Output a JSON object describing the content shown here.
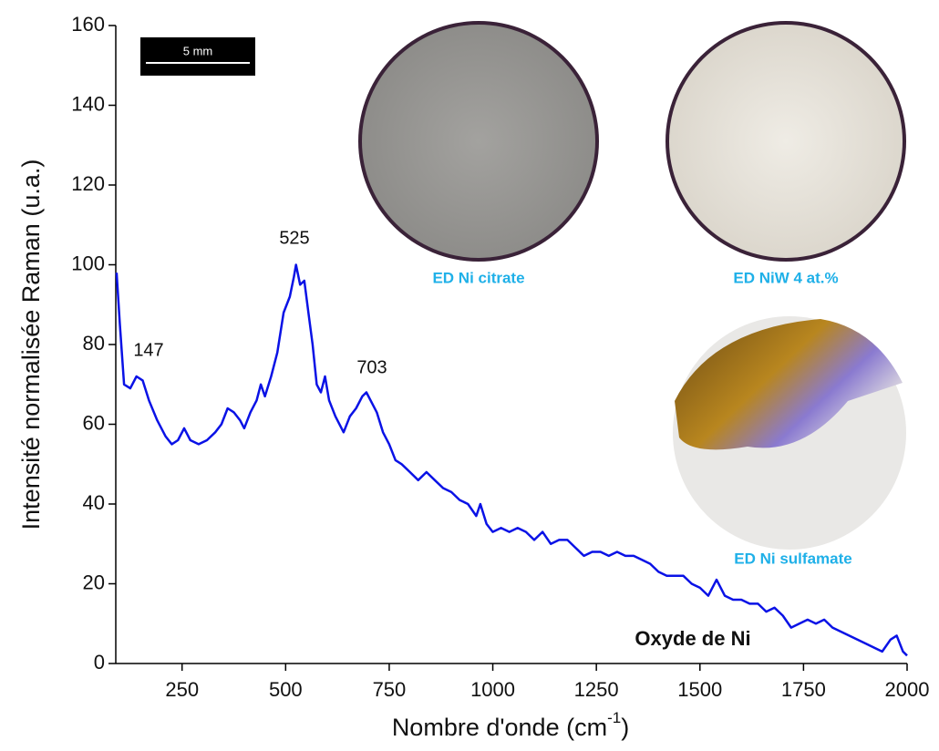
{
  "chart_data": {
    "type": "line",
    "color": "#0a12e6",
    "xlabel": {
      "text": "Nombre d'onde (cm",
      "sup": "-1",
      "end": ")"
    },
    "ylabel": "Intensité normalisée Raman (u.a.)",
    "xlim": [
      90,
      2000
    ],
    "ylim": [
      0,
      160
    ],
    "xticks": [
      250,
      500,
      750,
      1000,
      1250,
      1500,
      1750,
      2000
    ],
    "yticks": [
      0,
      20,
      40,
      60,
      80,
      100,
      120,
      140,
      160
    ],
    "x": [
      92,
      100,
      110,
      125,
      140,
      155,
      170,
      190,
      210,
      225,
      240,
      255,
      270,
      290,
      310,
      330,
      345,
      360,
      375,
      390,
      400,
      415,
      430,
      440,
      450,
      465,
      480,
      495,
      510,
      520,
      525,
      535,
      545,
      555,
      565,
      575,
      585,
      595,
      605,
      620,
      640,
      655,
      670,
      685,
      695,
      705,
      720,
      735,
      750,
      765,
      780,
      800,
      820,
      840,
      860,
      880,
      900,
      920,
      940,
      960,
      970,
      985,
      1000,
      1020,
      1040,
      1060,
      1080,
      1100,
      1120,
      1140,
      1160,
      1180,
      1200,
      1220,
      1240,
      1260,
      1280,
      1300,
      1320,
      1340,
      1360,
      1380,
      1400,
      1420,
      1440,
      1460,
      1480,
      1500,
      1520,
      1540,
      1560,
      1580,
      1600,
      1620,
      1640,
      1660,
      1680,
      1700,
      1720,
      1740,
      1760,
      1780,
      1800,
      1820,
      1840,
      1860,
      1880,
      1900,
      1920,
      1940,
      1960,
      1975,
      1990,
      2000
    ],
    "values": [
      98,
      85,
      70,
      69,
      72,
      71,
      66,
      61,
      57,
      55,
      56,
      59,
      56,
      55,
      56,
      58,
      60,
      64,
      63,
      61,
      59,
      63,
      66,
      70,
      67,
      72,
      78,
      88,
      92,
      97,
      100,
      95,
      96,
      88,
      80,
      70,
      68,
      72,
      66,
      62,
      58,
      62,
      64,
      67,
      68,
      66,
      63,
      58,
      55,
      51,
      50,
      48,
      46,
      48,
      46,
      44,
      43,
      41,
      40,
      37,
      40,
      35,
      33,
      34,
      33,
      34,
      33,
      31,
      33,
      30,
      31,
      31,
      29,
      27,
      28,
      28,
      27,
      28,
      27,
      27,
      26,
      25,
      23,
      22,
      22,
      22,
      20,
      19,
      17,
      21,
      17,
      16,
      16,
      15,
      15,
      13,
      14,
      12,
      9,
      10,
      11,
      10,
      11,
      9,
      8,
      7,
      6,
      5,
      4,
      3,
      6,
      7,
      3,
      2
    ],
    "annotations": [
      "147",
      "525",
      "703"
    ],
    "note": "Oxyde de Ni",
    "scale_bar": "5 mm",
    "insets": [
      "ED Ni citrate",
      "ED NiW 4 at.%",
      "ED Ni sulfamate"
    ]
  }
}
